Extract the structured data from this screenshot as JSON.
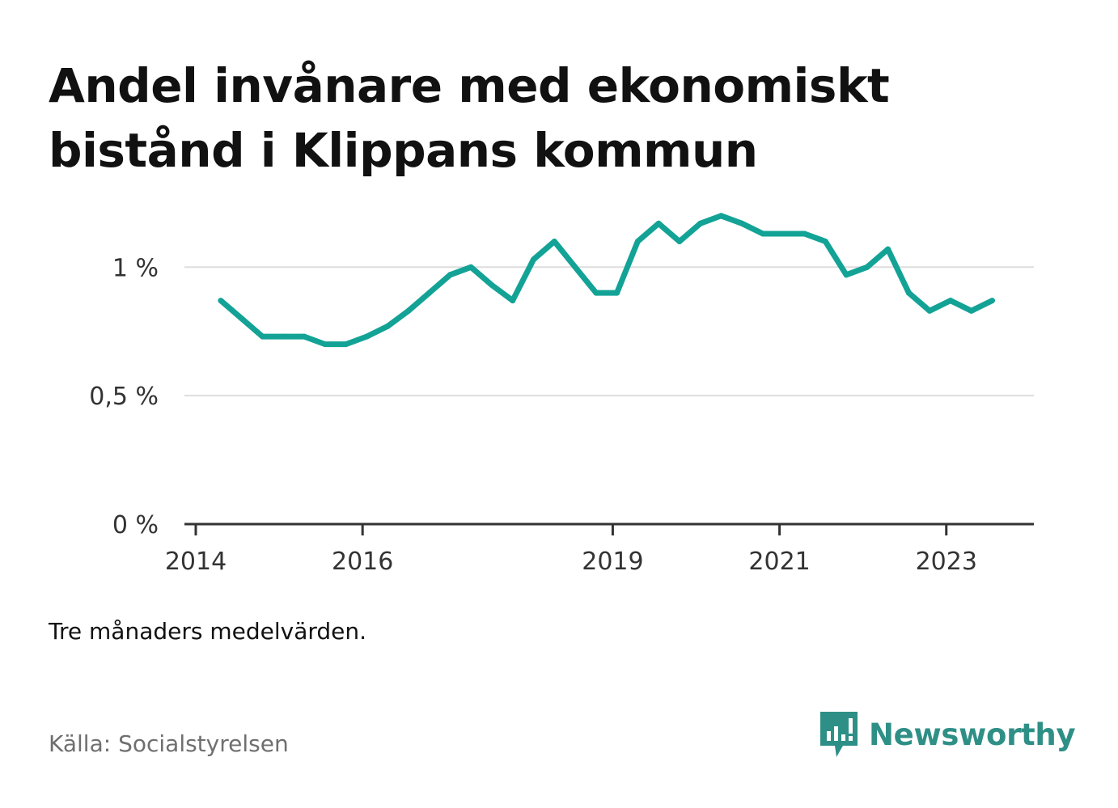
{
  "header": {
    "title": "Andel invånare med ekonomiskt bistånd i Klippans kommun"
  },
  "footer": {
    "note": "Tre månaders medelvärden.",
    "source": "Källa: Socialstyrelsen",
    "brand": "Newsworthy",
    "brand_icon": "bar-chart-speech-bubble-icon"
  },
  "colors": {
    "line": "#13a396",
    "brand": "#2e8f86",
    "grid": "#dddddd",
    "axis": "#333333"
  },
  "chart_data": {
    "type": "line",
    "title": "Andel invånare med ekonomiskt bistånd i Klippans kommun",
    "xlabel": "",
    "ylabel": "",
    "y_ticks": [
      {
        "value": 0,
        "label": "0 %"
      },
      {
        "value": 0.5,
        "label": "0,5 %"
      },
      {
        "value": 1,
        "label": "1 %"
      }
    ],
    "x_ticks": [
      {
        "value": 2014.0,
        "label": "2014"
      },
      {
        "value": 2016.0,
        "label": "2016"
      },
      {
        "value": 2019.0,
        "label": "2019"
      },
      {
        "value": 2021.0,
        "label": "2021"
      },
      {
        "value": 2023.0,
        "label": "2023"
      }
    ],
    "xlim": [
      2014.0,
      2024.05
    ],
    "ylim": [
      0,
      1.3
    ],
    "grid": true,
    "legend": "none",
    "series": [
      {
        "x": [
          2014.3,
          2014.55,
          2014.8,
          2015.05,
          2015.3,
          2015.55,
          2015.8,
          2016.05,
          2016.3,
          2016.55,
          2016.8,
          2017.05,
          2017.3,
          2017.55,
          2017.8,
          2018.05,
          2018.3,
          2018.55,
          2018.8,
          2019.05,
          2019.3,
          2019.55,
          2019.8,
          2020.05,
          2020.3,
          2020.55,
          2020.8,
          2021.05,
          2021.3,
          2021.55,
          2021.8,
          2022.05,
          2022.3,
          2022.55,
          2022.8,
          2023.05,
          2023.3,
          2023.55
        ],
        "values": [
          0.87,
          0.8,
          0.73,
          0.73,
          0.73,
          0.7,
          0.7,
          0.73,
          0.77,
          0.83,
          0.9,
          0.97,
          1.0,
          0.93,
          0.87,
          1.03,
          1.1,
          1.0,
          0.9,
          0.9,
          1.1,
          1.17,
          1.1,
          1.17,
          1.2,
          1.17,
          1.13,
          1.13,
          1.13,
          1.1,
          0.97,
          1.0,
          1.07,
          0.9,
          0.83,
          0.87,
          0.83,
          0.87
        ]
      }
    ]
  }
}
